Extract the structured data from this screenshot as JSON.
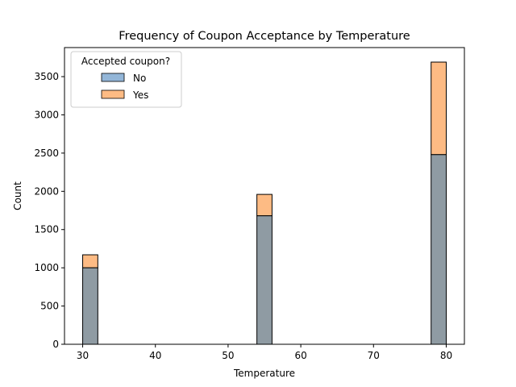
{
  "chart_data": {
    "type": "bar",
    "subtype": "stacked-histogram-overlay",
    "title": "Frequency of Coupon Acceptance by Temperature",
    "xlabel": "Temperature",
    "ylabel": "Count",
    "xlim": [
      27.5,
      82.5
    ],
    "ylim": [
      0,
      3880
    ],
    "xticks": [
      30,
      40,
      50,
      60,
      70,
      80
    ],
    "yticks": [
      0,
      500,
      1000,
      1500,
      2000,
      2500,
      3000,
      3500
    ],
    "bin_width": 2.083,
    "grid": false,
    "legend": {
      "title": "Accepted coupon?",
      "placement": "top-left",
      "entries": [
        "No",
        "Yes"
      ]
    },
    "bins": [
      {
        "x_start": 30.0,
        "no": 1000,
        "total": 1170
      },
      {
        "x_start": 53.96,
        "no": 1680,
        "total": 1960
      },
      {
        "x_start": 77.92,
        "no": 2480,
        "total": 3690
      }
    ],
    "series": [
      {
        "name": "No",
        "color": "#8f9ba3",
        "legend_color": "#93b6d8"
      },
      {
        "name": "Yes",
        "color": "#fdbb84",
        "legend_color": "#fdbb84"
      }
    ]
  }
}
